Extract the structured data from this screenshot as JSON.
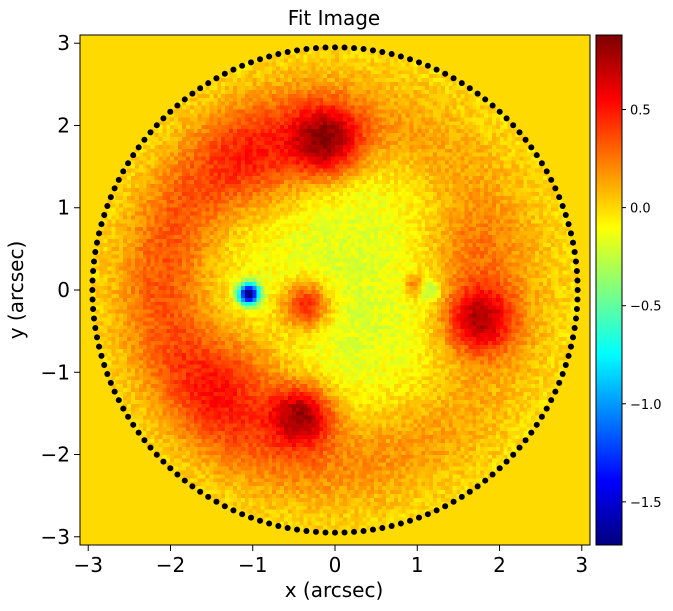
{
  "chart_data": {
    "type": "heatmap",
    "title": "Fit Image",
    "xlabel": "x (arcsec)",
    "ylabel": "y (arcsec)",
    "xlim": [
      -3.1,
      3.1
    ],
    "ylim": [
      -3.1,
      3.1
    ],
    "xticks": [
      -3,
      -2,
      -1,
      0,
      1,
      2,
      3
    ],
    "yticks": [
      -3,
      -2,
      -1,
      0,
      1,
      2,
      3
    ],
    "xtick_labels": [
      "−3",
      "−2",
      "−1",
      "0",
      "1",
      "2",
      "3"
    ],
    "ytick_labels": [
      "−3",
      "−2",
      "−1",
      "0",
      "1",
      "2",
      "3"
    ],
    "colormap": "jet",
    "colorbar": {
      "vmin": -1.72,
      "vmax": 0.88,
      "ticks": [
        0.5,
        0.0,
        -0.5,
        -1.0,
        -1.5
      ],
      "tick_labels": [
        "0.5",
        "0.0",
        "−0.5",
        "−1.0",
        "−1.5"
      ]
    },
    "outside_mask_value": 0.0,
    "mask": {
      "shape": "circle",
      "center": [
        0,
        0
      ],
      "radius": 2.95,
      "marker_color": "#000000"
    },
    "features": [
      {
        "kind": "arc_peak",
        "x": -0.1,
        "y": 1.8,
        "value": 0.72
      },
      {
        "kind": "arc_peak",
        "x": 1.75,
        "y": -0.35,
        "value": 0.7
      },
      {
        "kind": "arc_peak",
        "x": -0.4,
        "y": -1.52,
        "value": 0.72
      },
      {
        "kind": "blob",
        "x": -0.35,
        "y": -0.18,
        "value": 0.62
      },
      {
        "kind": "dip",
        "x": -1.05,
        "y": -0.05,
        "value": -1.72
      },
      {
        "kind": "small_peak",
        "x": 0.97,
        "y": 0.05,
        "value": 0.35
      }
    ]
  },
  "colors": {
    "frame": "#000000",
    "background": "#ffffff"
  }
}
